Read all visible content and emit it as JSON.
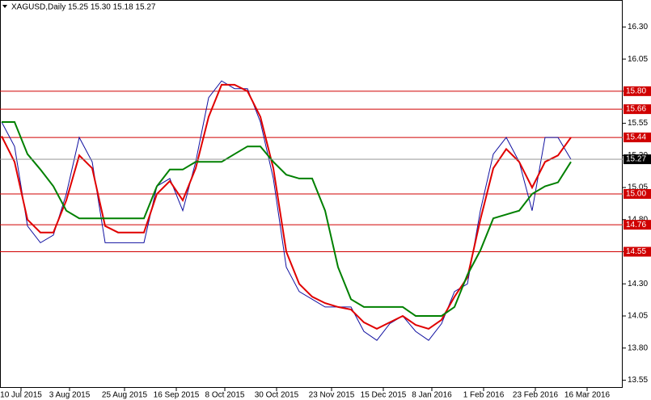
{
  "chart_data": {
    "type": "line",
    "title": "XAGUSD,Daily  15.25 15.30 15.18 15.27",
    "x": [
      0,
      4,
      8,
      12,
      16,
      20,
      24,
      28,
      32,
      36,
      40,
      44,
      48,
      52,
      56,
      60,
      64,
      68,
      72,
      76,
      80,
      84,
      88,
      92,
      96,
      100,
      104,
      108,
      112,
      116,
      120,
      124,
      128,
      132,
      136,
      140,
      144,
      148,
      152,
      156,
      160,
      164,
      168,
      172,
      176
    ],
    "series": [
      {
        "color": "#1010a0",
        "values": [
          15.56,
          15.37,
          14.75,
          14.62,
          14.68,
          15.0,
          15.44,
          15.25,
          14.62,
          14.62,
          14.62,
          14.62,
          15.06,
          15.12,
          14.87,
          15.25,
          15.75,
          15.88,
          15.82,
          15.82,
          15.56,
          15.12,
          14.43,
          14.24,
          14.18,
          14.12,
          14.12,
          14.12,
          13.93,
          13.86,
          13.99,
          14.05,
          13.93,
          13.86,
          13.99,
          14.24,
          14.3,
          14.87,
          15.31,
          15.44,
          15.25,
          14.87,
          15.44,
          15.44,
          15.27
        ]
      },
      {
        "color": "#e00000",
        "values": [
          15.45,
          15.25,
          14.8,
          14.7,
          14.7,
          14.95,
          15.3,
          15.2,
          14.75,
          14.7,
          14.7,
          14.7,
          15.0,
          15.1,
          14.95,
          15.2,
          15.6,
          15.85,
          15.85,
          15.8,
          15.6,
          15.2,
          14.55,
          14.3,
          14.2,
          14.15,
          14.12,
          14.1,
          14.0,
          13.95,
          14.0,
          14.05,
          13.98,
          13.95,
          14.02,
          14.2,
          14.35,
          14.8,
          15.2,
          15.35,
          15.25,
          15.05,
          15.25,
          15.3,
          15.44
        ]
      },
      {
        "color": "#008000",
        "values": [
          15.56,
          15.56,
          15.31,
          15.19,
          15.06,
          14.87,
          14.81,
          14.81,
          14.81,
          14.81,
          14.81,
          14.81,
          15.06,
          15.19,
          15.19,
          15.25,
          15.25,
          15.25,
          15.31,
          15.37,
          15.37,
          15.25,
          15.15,
          15.12,
          15.12,
          14.87,
          14.43,
          14.18,
          14.12,
          14.12,
          14.12,
          14.12,
          14.05,
          14.05,
          14.05,
          14.12,
          14.37,
          14.56,
          14.81,
          14.84,
          14.87,
          15.0,
          15.06,
          15.09,
          15.25
        ]
      }
    ],
    "xlim": [
      -0.5,
      192
    ],
    "xticks": [
      {
        "value": 6,
        "label": "10 Jul 2015"
      },
      {
        "value": 21,
        "label": "3 Aug 2015"
      },
      {
        "value": 38,
        "label": "25 Aug 2015"
      },
      {
        "value": 54,
        "label": "16 Sep 2015"
      },
      {
        "value": 69,
        "label": "8 Oct 2015"
      },
      {
        "value": 85,
        "label": "30 Oct 2015"
      },
      {
        "value": 102,
        "label": "23 Nov 2015"
      },
      {
        "value": 118,
        "label": "15 Dec 2015"
      },
      {
        "value": 133,
        "label": "8 Jan 2016"
      },
      {
        "value": 149,
        "label": "1 Feb 2016"
      },
      {
        "value": 165,
        "label": "23 Feb 2016"
      },
      {
        "value": 181,
        "label": "16 Mar 2016"
      }
    ],
    "ylim": [
      13.49,
      16.51
    ],
    "yticks": [
      {
        "value": 16.3,
        "label": "16.30"
      },
      {
        "value": 16.05,
        "label": "16.05"
      },
      {
        "value": 15.8,
        "label": "15.80"
      },
      {
        "value": 15.55,
        "label": "15.55"
      },
      {
        "value": 15.3,
        "label": "15.30"
      },
      {
        "value": 15.05,
        "label": "15.05"
      },
      {
        "value": 14.8,
        "label": "14.80"
      },
      {
        "value": 14.55,
        "label": "14.55"
      },
      {
        "value": 14.3,
        "label": "14.30"
      },
      {
        "value": 14.05,
        "label": "14.05"
      },
      {
        "value": 13.8,
        "label": "13.80"
      },
      {
        "value": 13.55,
        "label": "13.55"
      }
    ],
    "levels": [
      {
        "value": 15.8,
        "label": "15.80"
      },
      {
        "value": 15.66,
        "label": "15.66"
      },
      {
        "value": 15.44,
        "label": "15.44"
      },
      {
        "value": 15.0,
        "label": "15.00"
      },
      {
        "value": 14.76,
        "label": "14.76"
      },
      {
        "value": 14.55,
        "label": "14.55"
      }
    ],
    "level_color": "#d00000",
    "current_price": {
      "value": 15.27,
      "label": "15.27"
    }
  }
}
